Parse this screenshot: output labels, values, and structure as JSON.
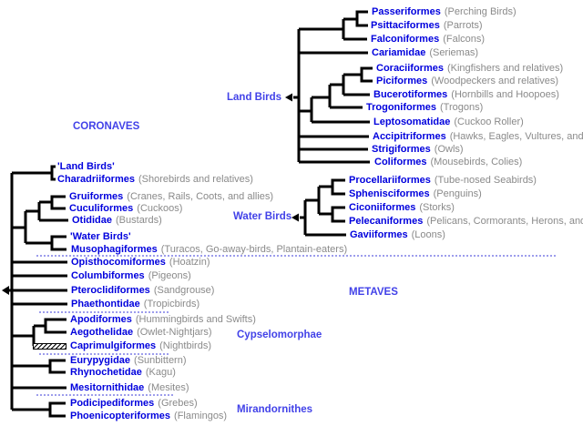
{
  "clade_labels": {
    "coronaves": "CORONAVES",
    "metaves": "METAVES",
    "land_birds": "Land Birds",
    "water_birds": "Water Birds",
    "cypselomorphae": "Cypselomorphae",
    "mirandornithes": "Mirandornithes"
  },
  "left_tree": {
    "tips": [
      {
        "name": "'Land Birds'",
        "common": ""
      },
      {
        "name": "Charadriiformes",
        "common": "(Shorebirds and relatives)"
      },
      {
        "name": "Gruiformes",
        "common": "(Cranes, Rails, Coots, and allies)"
      },
      {
        "name": "Cuculiformes",
        "common": "(Cuckoos)"
      },
      {
        "name": "Otididae",
        "common": "(Bustards)"
      },
      {
        "name": "'Water Birds'",
        "common": ""
      },
      {
        "name": "Musophagiformes",
        "common": "(Turacos, Go-away-birds, Plantain-eaters)"
      },
      {
        "name": "Opisthocomiformes",
        "common": "(Hoatzin)"
      },
      {
        "name": "Columbiformes",
        "common": "(Pigeons)"
      },
      {
        "name": "Pteroclidiformes",
        "common": "(Sandgrouse)"
      },
      {
        "name": "Phaethontidae",
        "common": "(Tropicbirds)"
      },
      {
        "name": "Apodiformes",
        "common": "(Hummingbirds and Swifts)"
      },
      {
        "name": "Aegothelidae",
        "common": "(Owlet-Nightjars)"
      },
      {
        "name": "Caprimulgiformes",
        "common": "(Nightbirds)"
      },
      {
        "name": "Eurypygidae",
        "common": "(Sunbittern)"
      },
      {
        "name": "Rhynochetidae",
        "common": "(Kagu)"
      },
      {
        "name": "Mesitornithidae",
        "common": "(Mesites)"
      },
      {
        "name": "Podicipediformes",
        "common": "(Grebes)"
      },
      {
        "name": "Phoenicopteriformes",
        "common": "(Flamingos)"
      }
    ]
  },
  "land_tree": {
    "tips": [
      {
        "name": "Passeriformes",
        "common": "(Perching Birds)"
      },
      {
        "name": "Psittaciformes",
        "common": "(Parrots)"
      },
      {
        "name": "Falconiformes",
        "common": "(Falcons)"
      },
      {
        "name": "Cariamidae",
        "common": "(Seriemas)"
      },
      {
        "name": "Coraciiformes",
        "common": "(Kingfishers and relatives)"
      },
      {
        "name": "Piciformes",
        "common": "(Woodpeckers and relatives)"
      },
      {
        "name": "Bucerotiformes",
        "common": "(Hornbills and Hoopoes)"
      },
      {
        "name": "Trogoniformes",
        "common": "(Trogons)"
      },
      {
        "name": "Leptosomatidae",
        "common": "(Cuckoo Roller)"
      },
      {
        "name": "Accipitriformes",
        "common": "(Hawks, Eagles, Vultures, and relatives)"
      },
      {
        "name": "Strigiformes",
        "common": "(Owls)"
      },
      {
        "name": "Coliformes",
        "common": "(Mousebirds, Colies)"
      }
    ]
  },
  "water_tree": {
    "tips": [
      {
        "name": "Procellariiformes",
        "common": "(Tube-nosed Seabirds)"
      },
      {
        "name": "Sphenisciformes",
        "common": "(Penguins)"
      },
      {
        "name": "Ciconiiformes",
        "common": "(Storks)"
      },
      {
        "name": "Pelecaniformes",
        "common": "(Pelicans, Cormorants, Herons, and relatives)"
      },
      {
        "name": "Gaviiformes",
        "common": "(Loons)"
      }
    ]
  },
  "colors": {
    "taxon_name": "#0000dd",
    "common_name": "#8a8a8a",
    "clade_label": "#4242e8",
    "branch": "#000000",
    "separator_line": "#3b3bd9"
  }
}
